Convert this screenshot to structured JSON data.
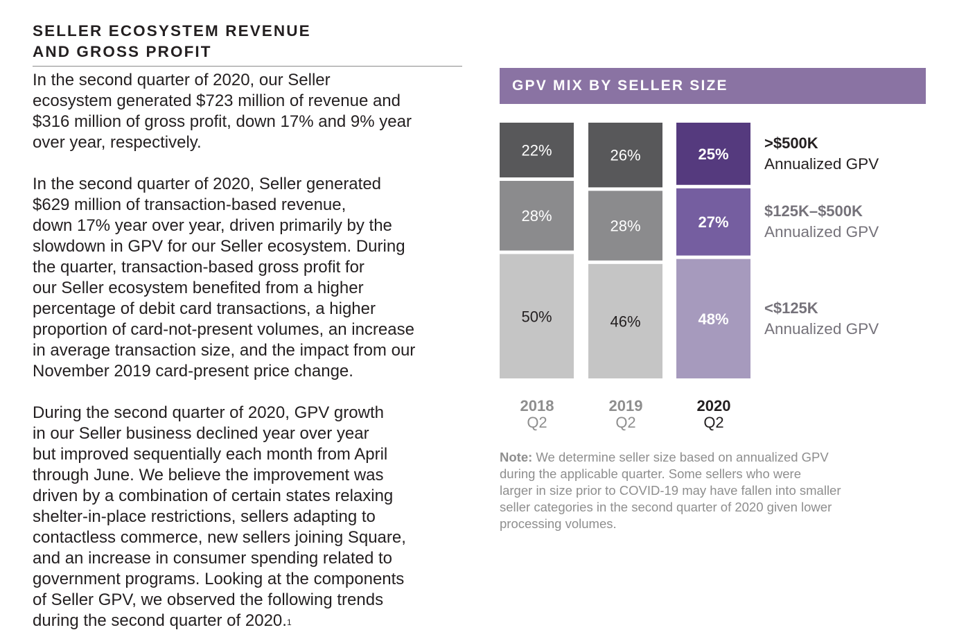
{
  "section_title": [
    "SELLER ECOSYSTEM REVENUE",
    "AND GROSS PROFIT"
  ],
  "paragraphs": [
    [
      "In the second quarter of 2020, our Seller",
      "ecosystem generated $723 million of revenue and",
      "$316 million of gross profit, down 17% and 9% year",
      "over year, respectively."
    ],
    [
      "In the second quarter of 2020, Seller generated",
      "$629 million of transaction-based revenue,",
      "down 17% year over year, driven primarily by the",
      "slowdown in GPV for our Seller ecosystem. During",
      "the quarter, transaction-based gross profit for",
      "our Seller ecosystem benefited from a higher",
      "percentage of debit card transactions, a higher",
      "proportion of card-not-present volumes, an increase",
      "in average transaction size, and the impact from our",
      "November 2019 card-present price change."
    ],
    [
      "During the second quarter of 2020, GPV growth",
      "in our Seller business declined year over year",
      "but improved sequentially each month from April",
      "through June. We believe the improvement was",
      "driven by a combination of certain states relaxing",
      "shelter-in-place restrictions, sellers adapting to",
      "contactless commerce, new sellers joining Square,",
      "and an increase in consumer spending related to",
      "government programs. Looking at the components",
      "of Seller GPV, we observed the following trends",
      "during the second quarter of 2020."
    ]
  ],
  "footnote_marker": "1",
  "chart_data": {
    "type": "bar",
    "stacked": true,
    "title": "GPV MIX BY SELLER SIZE",
    "categories": [
      {
        "year": "2018",
        "quarter": "Q2"
      },
      {
        "year": "2019",
        "quarter": "Q2"
      },
      {
        "year": "2020",
        "quarter": "Q2"
      }
    ],
    "series": [
      {
        "name": ">$500K",
        "name_sub": "Annualized GPV",
        "values": [
          22,
          26,
          25
        ],
        "labels": [
          "22%",
          "26%",
          "25%"
        ],
        "colors": [
          "#58585a",
          "#58585a",
          "#553a7e"
        ]
      },
      {
        "name": "$125K–$500K",
        "name_sub": "Annualized GPV",
        "values": [
          28,
          28,
          27
        ],
        "labels": [
          "28%",
          "28%",
          "27%"
        ],
        "colors": [
          "#8b8b8d",
          "#8b8b8d",
          "#755ea0"
        ]
      },
      {
        "name": "<$125K",
        "name_sub": "Annualized GPV",
        "values": [
          50,
          46,
          48
        ],
        "labels": [
          "50%",
          "46%",
          "48%"
        ],
        "colors": [
          "#c5c5c5",
          "#c5c5c5",
          "#a69abd"
        ]
      }
    ],
    "highlight_category": 2,
    "label_colors": {
      "gray_dark": "#ffffff",
      "gray_light": "#231f20",
      "purple": "#ffffff"
    },
    "ylim": [
      0,
      100
    ]
  },
  "note": {
    "label": "Note:",
    "lines": [
      "We determine seller size based on annualized GPV",
      "during the applicable quarter. Some sellers who were",
      "larger in size prior to COVID-19 may have fallen into smaller",
      "seller categories in the second quarter of 2020 given lower",
      "processing volumes."
    ]
  }
}
